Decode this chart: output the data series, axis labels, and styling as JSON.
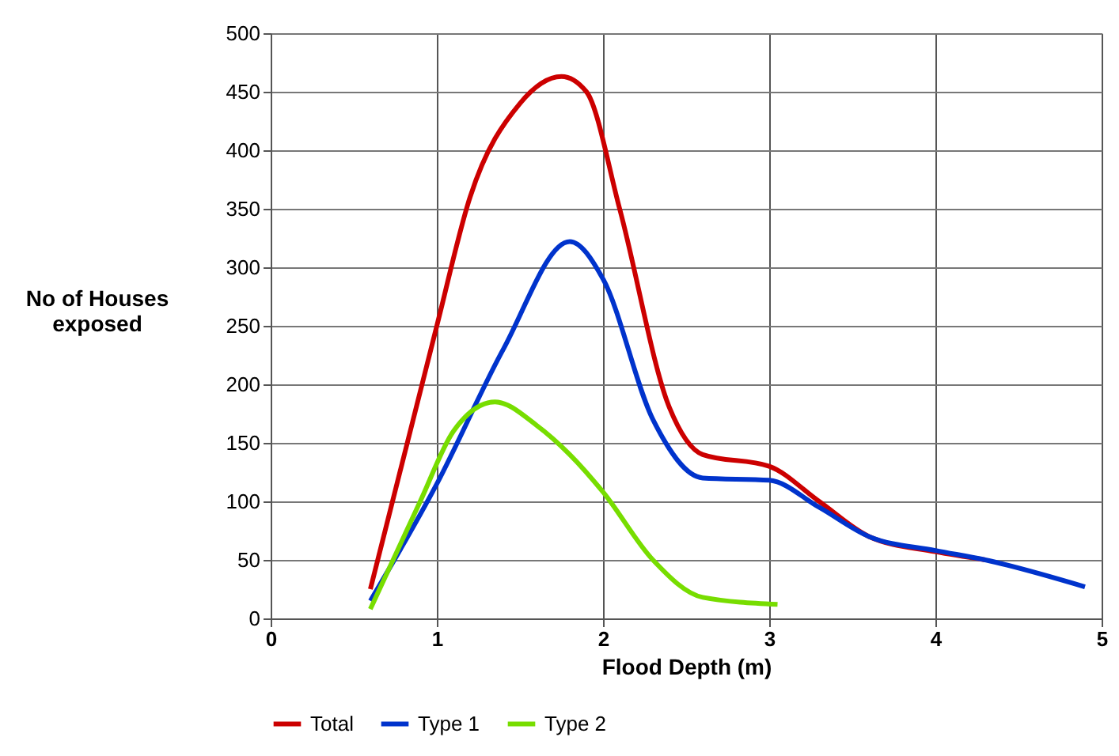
{
  "chart_data": {
    "type": "line",
    "xlabel": "Flood Depth (m)",
    "ylabel": "No of Houses exposed",
    "xlim": [
      0,
      5
    ],
    "xticks": [
      0,
      1,
      2,
      3,
      4,
      5
    ],
    "ylim": [
      0,
      500
    ],
    "yticks": [
      0,
      50,
      100,
      150,
      200,
      250,
      300,
      350,
      400,
      450,
      500
    ],
    "grid": true,
    "legend": "bottom",
    "marker": "none",
    "line_style": "solid",
    "series": [
      {
        "name": "Total",
        "color": "#cc0000",
        "x": [
          0.6,
          1,
          1.2,
          1.5,
          1.75,
          1.9,
          2.1,
          2.4,
          2.6,
          3,
          3.3,
          3.6,
          4,
          4.3
        ],
        "values": [
          25,
          250,
          360,
          440,
          463,
          450,
          350,
          180,
          140,
          130,
          100,
          70,
          57,
          50
        ]
      },
      {
        "name": "Type 1",
        "color": "#0033cc",
        "x": [
          0.6,
          1,
          1.4,
          1.8,
          2,
          2.3,
          2.6,
          3,
          3.3,
          3.6,
          4,
          4.3,
          4.9
        ],
        "values": [
          15,
          115,
          230,
          322,
          290,
          170,
          120,
          118,
          95,
          70,
          58,
          50,
          27
        ]
      },
      {
        "name": "Type 2",
        "color": "#77dd00",
        "x": [
          0.6,
          0.9,
          1.1,
          1.35,
          1.6,
          1.8,
          2,
          2.3,
          2.6,
          3.05
        ],
        "values": [
          8,
          100,
          160,
          185,
          165,
          140,
          108,
          50,
          18,
          12
        ]
      }
    ]
  }
}
